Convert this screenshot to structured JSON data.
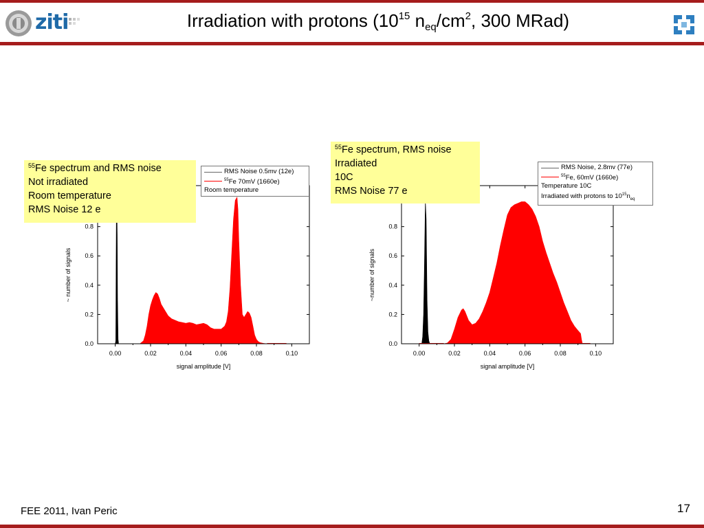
{
  "slide": {
    "title": {
      "part1": "Irradiation with protons (10",
      "sup1": "15",
      "part2": " n",
      "sub1": "eq",
      "part3": "/cm",
      "sup2": "2",
      "part4": ", 300 MRad)"
    },
    "logo_text": "ziti",
    "footer": "FEE 2011, Ivan Peric",
    "page_number": "17",
    "accent_color": "#a51c1c"
  },
  "notes": {
    "left": {
      "line1_sup": "55",
      "line1_text": "Fe spectrum and RMS noise",
      "line2": "Not irradiated",
      "line3": "Room temperature",
      "line4": "RMS Noise 12 e"
    },
    "right": {
      "line1_sup": "55",
      "line1_text": "Fe spectrum, RMS noise",
      "line2": "Irradiated",
      "line3": "10C",
      "line4": "RMS Noise 77 e"
    }
  },
  "legends": {
    "left": {
      "entry1": "RMS Noise 0.5mv (12e)",
      "entry2_sup": "55",
      "entry2_text": "Fe 70mV (1660e)",
      "entry3": "Room temperature"
    },
    "right": {
      "entry1": "RMS Noise, 2.8mv (77e)",
      "entry2_sup": "55",
      "entry2_text": "Fe, 60mV  (1660e)",
      "entry3": "Temperature 10C",
      "entry4_a": "Irradiated with protons to 10",
      "entry4_sup": "15",
      "entry4_b": "n",
      "entry4_sub": "eq"
    }
  },
  "chart_data": [
    {
      "type": "area",
      "xlabel": "signal amplitude [V]",
      "ylabel": "~ number of signals",
      "xlim": [
        -0.01,
        0.11
      ],
      "ylim": [
        0,
        1.08
      ],
      "xticks": [
        "0.00",
        "0.02",
        "0.04",
        "0.06",
        "0.08",
        "0.10"
      ],
      "yticks": [
        "0.0",
        "0.2",
        "0.4",
        "0.6",
        "0.8"
      ],
      "series": [
        {
          "name": "RMS Noise 0.5mv (12e)",
          "color": "#000000",
          "x": [
            0.0,
            0.0003,
            0.0004,
            0.0006,
            0.0008,
            0.0011,
            0.0013,
            0.0016,
            0.0019
          ],
          "y": [
            0,
            0.02,
            0.35,
            0.85,
            1.05,
            0.75,
            0.3,
            0.03,
            0
          ]
        },
        {
          "name": "55Fe 70mV (1660e)",
          "color": "#ff0000",
          "x": [
            0.0,
            0.014,
            0.016,
            0.017,
            0.018,
            0.019,
            0.02,
            0.021,
            0.022,
            0.023,
            0.024,
            0.025,
            0.026,
            0.028,
            0.03,
            0.032,
            0.034,
            0.036,
            0.038,
            0.04,
            0.042,
            0.044,
            0.046,
            0.048,
            0.05,
            0.052,
            0.054,
            0.056,
            0.058,
            0.06,
            0.062,
            0.063,
            0.064,
            0.065,
            0.066,
            0.067,
            0.068,
            0.069,
            0.0695,
            0.07,
            0.071,
            0.072,
            0.073,
            0.074,
            0.075,
            0.076,
            0.077,
            0.078,
            0.079,
            0.08,
            0.081,
            0.082,
            0.084,
            0.086
          ],
          "y": [
            0,
            0,
            0.02,
            0.06,
            0.12,
            0.2,
            0.26,
            0.3,
            0.33,
            0.35,
            0.34,
            0.31,
            0.27,
            0.23,
            0.19,
            0.17,
            0.16,
            0.15,
            0.145,
            0.14,
            0.145,
            0.14,
            0.13,
            0.135,
            0.14,
            0.13,
            0.11,
            0.1,
            0.1,
            0.1,
            0.12,
            0.15,
            0.22,
            0.38,
            0.62,
            0.85,
            0.98,
            1.0,
            0.92,
            0.72,
            0.4,
            0.2,
            0.18,
            0.2,
            0.22,
            0.21,
            0.18,
            0.12,
            0.06,
            0.03,
            0.015,
            0.008,
            0.003,
            0
          ]
        }
      ]
    },
    {
      "type": "area",
      "xlabel": "signal amplitude [V]",
      "ylabel": "~number of signals",
      "xlim": [
        -0.01,
        0.11
      ],
      "ylim": [
        0,
        1.08
      ],
      "xticks": [
        "0.00",
        "0.02",
        "0.04",
        "0.06",
        "0.08",
        "0.10"
      ],
      "yticks": [
        "0.0",
        "0.2",
        "0.4",
        "0.6",
        "0.8"
      ],
      "series": [
        {
          "name": "RMS Noise, 2.8mv (77e)",
          "color": "#000000",
          "x": [
            0.0015,
            0.002,
            0.0025,
            0.003,
            0.0035,
            0.004,
            0.0045,
            0.005,
            0.0055,
            0.006
          ],
          "y": [
            0,
            0.05,
            0.2,
            0.55,
            0.98,
            0.85,
            0.3,
            0.08,
            0.02,
            0
          ]
        },
        {
          "name": "55Fe, 60mV  (1660e)",
          "color": "#ff0000",
          "x": [
            0.014,
            0.016,
            0.018,
            0.02,
            0.022,
            0.024,
            0.025,
            0.026,
            0.028,
            0.03,
            0.032,
            0.034,
            0.036,
            0.038,
            0.04,
            0.042,
            0.044,
            0.046,
            0.048,
            0.05,
            0.052,
            0.054,
            0.056,
            0.058,
            0.06,
            0.062,
            0.064,
            0.066,
            0.068,
            0.07,
            0.072,
            0.074,
            0.076,
            0.078,
            0.08,
            0.082,
            0.084,
            0.086,
            0.088,
            0.09,
            0.0915,
            0.092,
            0.0925
          ],
          "y": [
            0,
            0.005,
            0.03,
            0.1,
            0.18,
            0.23,
            0.24,
            0.22,
            0.16,
            0.13,
            0.14,
            0.17,
            0.22,
            0.28,
            0.35,
            0.45,
            0.55,
            0.67,
            0.78,
            0.88,
            0.93,
            0.95,
            0.96,
            0.97,
            0.97,
            0.95,
            0.92,
            0.87,
            0.8,
            0.7,
            0.62,
            0.55,
            0.48,
            0.42,
            0.35,
            0.28,
            0.22,
            0.16,
            0.12,
            0.09,
            0.07,
            0.03,
            0
          ]
        }
      ]
    }
  ]
}
